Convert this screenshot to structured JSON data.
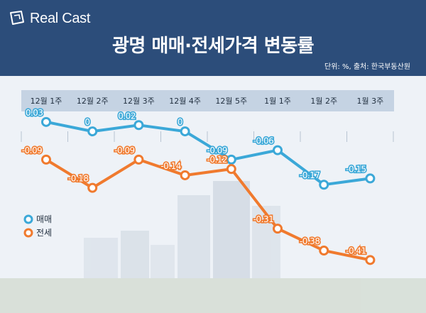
{
  "header": {
    "logo_text": "Real Cast",
    "title": "광명 매매·전세가격 변동률",
    "unit_note": "단위: %, 출처: 한국부동산원"
  },
  "colors": {
    "header_bg": "#2c4d7a",
    "sale": "#3ba8d8",
    "jeonse": "#f07a2e",
    "band": "#c5d3e3"
  },
  "chart_data": {
    "type": "line",
    "title": "광명 매매·전세가격 변동률",
    "categories": [
      "12월 1주",
      "12월 2주",
      "12월 3주",
      "12월 4주",
      "12월 5주",
      "1월 1주",
      "1월 2주",
      "1월 3주"
    ],
    "series": [
      {
        "name": "매매",
        "values": [
          0.03,
          0,
          0.02,
          0,
          -0.09,
          -0.06,
          -0.17,
          -0.15
        ],
        "labels": [
          "0.03",
          "0",
          "0.02",
          "0",
          "-0.09",
          "-0.06",
          "-0.17",
          "-0.15"
        ]
      },
      {
        "name": "전세",
        "values": [
          -0.09,
          -0.18,
          -0.09,
          -0.14,
          -0.12,
          -0.31,
          -0.38,
          -0.41
        ],
        "labels": [
          "-0.09",
          "-0.18",
          "-0.09",
          "-0.14",
          "-0.12",
          "-0.31",
          "-0.38",
          "-0.41"
        ]
      }
    ],
    "ylim": [
      -0.45,
      0.05
    ],
    "legend_position": "left"
  }
}
